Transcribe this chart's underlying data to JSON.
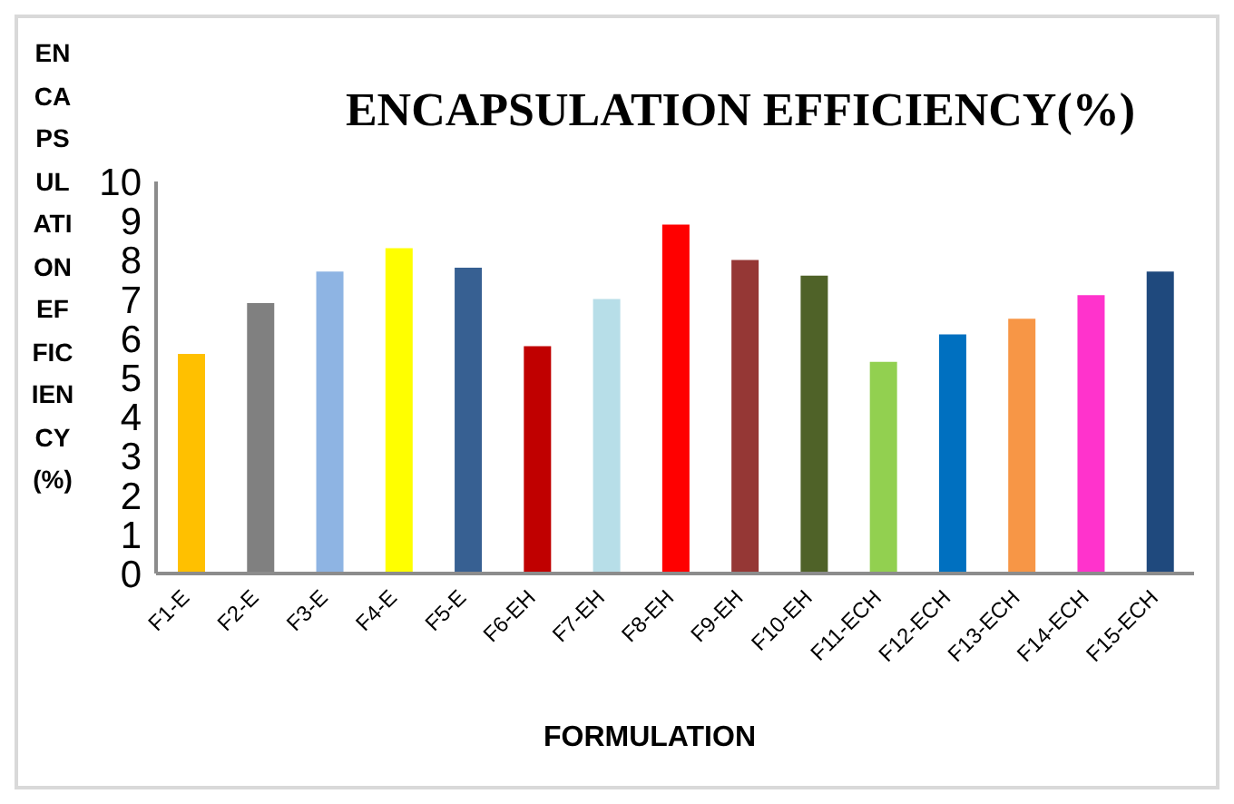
{
  "chart_data": {
    "type": "bar",
    "title": "ENCAPSULATION EFFICIENCY(%)",
    "xlabel": "FORMULATION",
    "ylabel": "ENCAPSULATION EFFICIENCY(%)",
    "categories": [
      "F1-E",
      "F2-E",
      "F3-E",
      "F4-E",
      "F5-E",
      "F6-EH",
      "F7-EH",
      "F8-EH",
      "F9-EH",
      "F10-EH",
      "F11-ECH",
      "F12-ECH",
      "F13-ECH",
      "F14-ECH",
      "F15-ECH"
    ],
    "values": [
      5.6,
      6.9,
      7.7,
      8.3,
      7.8,
      5.8,
      7.0,
      8.9,
      8.0,
      7.6,
      5.4,
      6.1,
      6.5,
      7.1,
      7.7
    ],
    "colors": [
      "#ffc000",
      "#808080",
      "#8eb4e3",
      "#ffff00",
      "#376092",
      "#c00000",
      "#b7dee8",
      "#ff0000",
      "#953735",
      "#4f6228",
      "#92d050",
      "#0070c0",
      "#f79646",
      "#ff33cc",
      "#1f497d"
    ],
    "ylim": [
      0,
      10
    ],
    "yticks": [
      0,
      1,
      2,
      3,
      4,
      5,
      6,
      7,
      8,
      9,
      10
    ],
    "grid": false,
    "legend": false
  }
}
